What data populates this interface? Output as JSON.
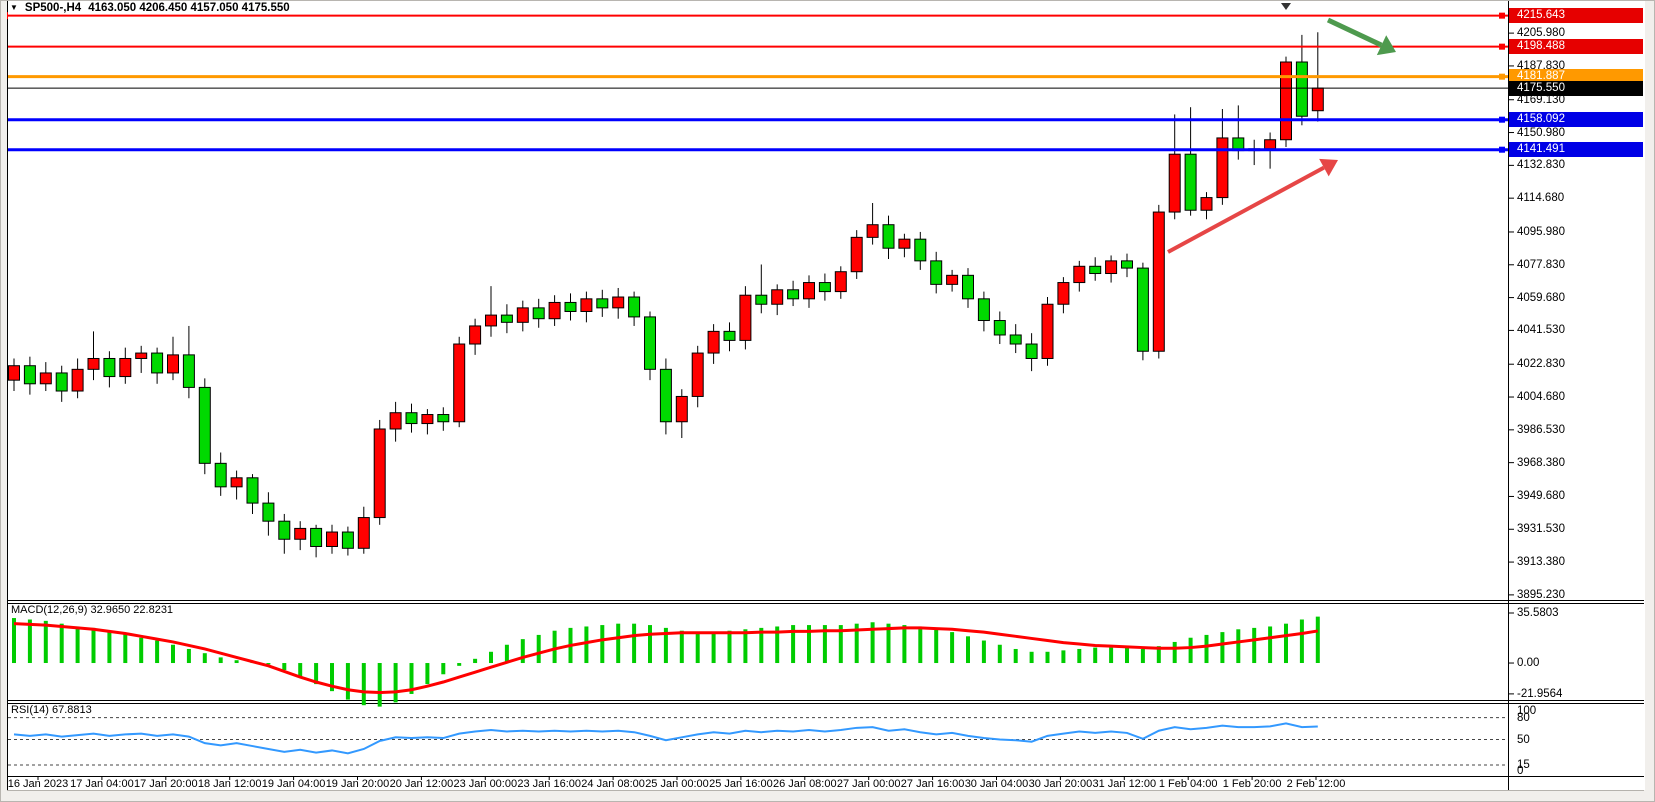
{
  "window": {
    "symbol_period": "SP500-,H4",
    "ohlc_line": "4163.050 4206.450 4157.050 4175.550"
  },
  "colors": {
    "bull": "#ff0000",
    "bear": "#00d900",
    "wick": "#000000",
    "macd_bar": "#00cc00",
    "macd_signal": "#ff0000",
    "rsi_line": "#3399ff",
    "badge_text": "#ffffff"
  },
  "price_axis": {
    "ticks": [
      {
        "t": "4205.980",
        "v": 4205.98
      },
      {
        "t": "4187.830",
        "v": 4187.83
      },
      {
        "t": "4169.130",
        "v": 4169.13
      },
      {
        "t": "4150.980",
        "v": 4150.98
      },
      {
        "t": "4132.830",
        "v": 4132.83
      },
      {
        "t": "4114.680",
        "v": 4114.68
      },
      {
        "t": "4095.980",
        "v": 4095.98
      },
      {
        "t": "4077.830",
        "v": 4077.83
      },
      {
        "t": "4059.680",
        "v": 4059.68
      },
      {
        "t": "4041.530",
        "v": 4041.53
      },
      {
        "t": "4022.830",
        "v": 4022.83
      },
      {
        "t": "4004.680",
        "v": 4004.68
      },
      {
        "t": "3986.530",
        "v": 3986.53
      },
      {
        "t": "3968.380",
        "v": 3968.38
      },
      {
        "t": "3949.680",
        "v": 3949.68
      },
      {
        "t": "3931.530",
        "v": 3931.53
      },
      {
        "t": "3913.380",
        "v": 3913.38
      },
      {
        "t": "3895.230",
        "v": 3895.23
      }
    ]
  },
  "price_lines": [
    {
      "label": "4215.643",
      "value": 4215.643,
      "color": "#ff0000",
      "badge": "#e60000",
      "width": 2,
      "left_handle": true,
      "right_handle": true
    },
    {
      "label": "4198.488",
      "value": 4198.488,
      "color": "#ff0000",
      "badge": "#e60000",
      "width": 2,
      "left_handle": false,
      "right_handle": true
    },
    {
      "label": "4181.887",
      "value": 4181.887,
      "color": "#ff9900",
      "badge": "#ff9900",
      "width": 3,
      "left_handle": false,
      "right_handle": true
    },
    {
      "label": "4158.092",
      "value": 4158.092,
      "color": "#0000ff",
      "badge": "#0000e6",
      "width": 3,
      "left_handle": false,
      "right_handle": true
    },
    {
      "label": "4141.491",
      "value": 4141.491,
      "color": "#0000ff",
      "badge": "#0000e6",
      "width": 3,
      "left_handle": false,
      "right_handle": true
    }
  ],
  "current_price": {
    "label": "4175.550",
    "value": 4175.55,
    "color": "#000000",
    "badge": "#000000"
  },
  "macd_panel": {
    "label": "MACD(12,26,9) 32.9650 22.8231",
    "axis": [
      {
        "t": "35.5803",
        "v": 35.5803
      },
      {
        "t": "0.00",
        "v": 0
      },
      {
        "t": "-21.9564",
        "v": -21.9564
      }
    ]
  },
  "rsi_panel": {
    "label": "RSI(14) 67.8813",
    "axis": [
      {
        "t": "100",
        "v": 100
      },
      {
        "t": "80",
        "v": 80
      },
      {
        "t": "50",
        "v": 50
      },
      {
        "t": "15",
        "v": 15
      },
      {
        "t": "0",
        "v": 0
      }
    ],
    "dashed_levels": [
      80,
      50,
      15
    ]
  },
  "time_axis": {
    "labels": [
      "16 Jan 2023",
      "17 Jan 04:00",
      "17 Jan 20:00",
      "18 Jan 12:00",
      "19 Jan 04:00",
      "19 Jan 20:00",
      "20 Jan 12:00",
      "23 Jan 00:00",
      "23 Jan 16:00",
      "24 Jan 08:00",
      "25 Jan 00:00",
      "25 Jan 16:00",
      "26 Jan 08:00",
      "27 Jan 00:00",
      "27 Jan 16:00",
      "30 Jan 04:00",
      "30 Jan 20:00",
      "31 Jan 12:00",
      "1 Feb 04:00",
      "1 Feb 20:00",
      "2 Feb 12:00"
    ]
  },
  "chart_data": {
    "type": "candlestick",
    "symbol": "SP500-",
    "timeframe": "H4",
    "title": "SP500-,H4 4163.050 4206.450 4157.050 4175.550",
    "legend_position": "top-left",
    "grid": false,
    "main_ylim": [
      3892.4,
      4224.3
    ],
    "macd_ylim": [
      -26.3,
      42.7
    ],
    "rsi_ylim": [
      0,
      100
    ],
    "candles": [
      [
        4014,
        4026,
        4008,
        4022
      ],
      [
        4022,
        4027,
        4006,
        4012
      ],
      [
        4012,
        4024,
        4008,
        4018
      ],
      [
        4018,
        4022,
        4002,
        4008
      ],
      [
        4008,
        4026,
        4004,
        4020
      ],
      [
        4020,
        4041,
        4014,
        4026
      ],
      [
        4026,
        4030,
        4010,
        4016
      ],
      [
        4016,
        4032,
        4012,
        4026
      ],
      [
        4026,
        4033,
        4018,
        4029
      ],
      [
        4029,
        4032,
        4012,
        4018
      ],
      [
        4018,
        4038,
        4014,
        4028
      ],
      [
        4028,
        4044,
        4004,
        4010
      ],
      [
        4010,
        4015,
        3962,
        3968
      ],
      [
        3968,
        3974,
        3950,
        3955
      ],
      [
        3955,
        3964,
        3948,
        3960
      ],
      [
        3960,
        3962,
        3940,
        3946
      ],
      [
        3946,
        3952,
        3928,
        3936
      ],
      [
        3936,
        3940,
        3918,
        3926
      ],
      [
        3926,
        3936,
        3920,
        3932
      ],
      [
        3932,
        3934,
        3916,
        3922
      ],
      [
        3922,
        3934,
        3918,
        3930
      ],
      [
        3930,
        3933,
        3917,
        3921
      ],
      [
        3921,
        3944,
        3918,
        3938
      ],
      [
        3938,
        3992,
        3934,
        3987
      ],
      [
        3987,
        4002,
        3980,
        3996
      ],
      [
        3996,
        4001,
        3985,
        3990
      ],
      [
        3990,
        3998,
        3984,
        3995
      ],
      [
        3995,
        3999,
        3986,
        3991
      ],
      [
        3991,
        4038,
        3988,
        4034
      ],
      [
        4034,
        4048,
        4028,
        4044
      ],
      [
        4044,
        4066,
        4038,
        4050
      ],
      [
        4050,
        4056,
        4040,
        4046
      ],
      [
        4046,
        4058,
        4041,
        4054
      ],
      [
        4054,
        4059,
        4043,
        4048
      ],
      [
        4048,
        4061,
        4044,
        4057
      ],
      [
        4057,
        4062,
        4047,
        4052
      ],
      [
        4052,
        4063,
        4046,
        4059
      ],
      [
        4059,
        4064,
        4049,
        4054
      ],
      [
        4054,
        4065,
        4048,
        4060
      ],
      [
        4060,
        4063,
        4044,
        4049
      ],
      [
        4049,
        4052,
        4014,
        4020
      ],
      [
        4020,
        4026,
        3984,
        3991
      ],
      [
        3991,
        4009,
        3982,
        4005
      ],
      [
        4005,
        4033,
        3999,
        4029
      ],
      [
        4029,
        4045,
        4023,
        4041
      ],
      [
        4041,
        4046,
        4030,
        4036
      ],
      [
        4036,
        4066,
        4031,
        4061
      ],
      [
        4061,
        4078,
        4051,
        4056
      ],
      [
        4056,
        4067,
        4050,
        4064
      ],
      [
        4064,
        4069,
        4055,
        4059
      ],
      [
        4059,
        4072,
        4054,
        4068
      ],
      [
        4068,
        4073,
        4058,
        4063
      ],
      [
        4063,
        4077,
        4059,
        4074
      ],
      [
        4074,
        4097,
        4070,
        4093
      ],
      [
        4093,
        4112,
        4089,
        4100
      ],
      [
        4100,
        4105,
        4081,
        4087
      ],
      [
        4087,
        4095,
        4082,
        4092
      ],
      [
        4092,
        4096,
        4075,
        4080
      ],
      [
        4080,
        4085,
        4062,
        4067
      ],
      [
        4067,
        4075,
        4063,
        4072
      ],
      [
        4072,
        4076,
        4054,
        4059
      ],
      [
        4059,
        4063,
        4041,
        4047
      ],
      [
        4047,
        4052,
        4034,
        4039
      ],
      [
        4039,
        4045,
        4029,
        4034
      ],
      [
        4034,
        4040,
        4019,
        4026
      ],
      [
        4026,
        4060,
        4022,
        4056
      ],
      [
        4056,
        4071,
        4051,
        4068
      ],
      [
        4068,
        4080,
        4063,
        4077
      ],
      [
        4077,
        4082,
        4069,
        4073
      ],
      [
        4073,
        4083,
        4068,
        4080
      ],
      [
        4080,
        4084,
        4071,
        4076
      ],
      [
        4076,
        4079,
        4025,
        4030
      ],
      [
        4030,
        4111,
        4026,
        4107
      ],
      [
        4107,
        4161,
        4103,
        4139
      ],
      [
        4139,
        4165,
        4105,
        4108
      ],
      [
        4108,
        4118,
        4103,
        4115
      ],
      [
        4115,
        4164,
        4111,
        4148
      ],
      [
        4148,
        4166,
        4136,
        4141
      ],
      [
        4141,
        4147,
        4133,
        4142
      ],
      [
        4142,
        4151,
        4131,
        4147
      ],
      [
        4147,
        4193,
        4143,
        4190
      ],
      [
        4190,
        4205,
        4155,
        4160
      ],
      [
        4163.05,
        4206.45,
        4157.05,
        4175.55
      ]
    ],
    "macd_histogram": [
      32,
      31,
      30,
      28,
      26,
      25,
      23,
      21,
      18,
      16,
      13,
      10,
      7,
      4,
      2,
      0.5,
      -1,
      -5,
      -10,
      -15,
      -20,
      -26,
      -30,
      -31,
      -28,
      -22,
      -15,
      -8,
      -2,
      3,
      8,
      13,
      17,
      20,
      23,
      25,
      26,
      27,
      28,
      28,
      27,
      25,
      23,
      22,
      22,
      23,
      24,
      25,
      26,
      27,
      27,
      27,
      27,
      28,
      29,
      28,
      27,
      26,
      24,
      22,
      19,
      16,
      13,
      10,
      8,
      8,
      9,
      10,
      11,
      11,
      11,
      10,
      12,
      15,
      18,
      20,
      22,
      24,
      25,
      26,
      28,
      31,
      33
    ],
    "macd_signal": [
      28,
      27.5,
      27,
      26,
      25,
      24,
      22.5,
      21,
      19,
      17,
      15,
      12.5,
      10,
      7,
      4,
      1,
      -2,
      -6,
      -10,
      -13.5,
      -16.5,
      -19,
      -20.5,
      -21,
      -20.5,
      -19,
      -16.5,
      -13.5,
      -10,
      -6.5,
      -3,
      0.5,
      4,
      7,
      10,
      12.5,
      14.5,
      16.5,
      18,
      19.5,
      20.5,
      21,
      21.5,
      21.5,
      21.5,
      21.5,
      21.5,
      22,
      22,
      22.5,
      22.5,
      23,
      23,
      23.5,
      24,
      24.5,
      25,
      25,
      24.5,
      24,
      23,
      22,
      20.5,
      19,
      17.5,
      16,
      14.5,
      13.5,
      12.5,
      12,
      11.5,
      11,
      10.5,
      10.5,
      11,
      12,
      13.5,
      15,
      16.5,
      18,
      19.5,
      21,
      22.82
    ],
    "rsi": [
      57,
      55,
      57,
      54,
      56,
      58,
      55,
      57,
      58,
      55,
      57,
      54,
      45,
      42,
      45,
      41,
      37,
      33,
      36,
      32,
      35,
      31,
      37,
      48,
      53,
      52,
      53,
      52,
      58,
      61,
      63,
      61,
      62,
      61,
      62,
      61,
      62,
      61,
      62,
      60,
      55,
      49,
      53,
      57,
      60,
      58,
      62,
      60,
      62,
      61,
      63,
      61,
      63,
      66,
      67,
      62,
      64,
      60,
      57,
      59,
      55,
      52,
      50,
      49,
      47,
      55,
      58,
      61,
      59,
      61,
      59,
      51,
      62,
      67,
      64,
      66,
      69,
      67,
      67,
      68,
      72,
      67,
      67.88
    ],
    "annotations": [
      {
        "name": "trend-up-arrow",
        "color": "#e64646",
        "from": [
          1168,
          252
        ],
        "to": [
          1338,
          160
        ],
        "width": 4
      },
      {
        "name": "breakout-down-arrow",
        "color": "#4e9a4e",
        "from": [
          1328,
          20
        ],
        "to": [
          1396,
          52
        ],
        "width": 5
      }
    ]
  }
}
